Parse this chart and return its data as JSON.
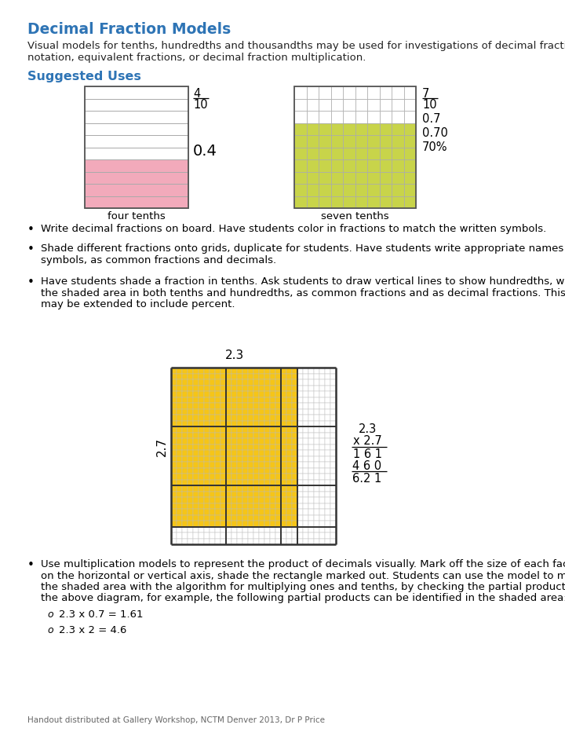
{
  "title": "Decimal Fraction Models",
  "title_color": "#2E74B5",
  "subtitle_line1": "Visual models for tenths, hundredths and thousandths may be used for investigations of decimal fraction",
  "subtitle_line2": "notation, equivalent fractions, or decimal fraction multiplication.",
  "section_title": "Suggested Uses",
  "section_color": "#2E74B5",
  "background_color": "#ffffff",
  "pink_color": "#F2AABB",
  "green_color": "#C8D44A",
  "yellow_color": "#F5C518",
  "grid_color": "#999999",
  "dark_line_color": "#444444",
  "bullet1": "Write decimal fractions on board. Have students color in fractions to match the written symbols.",
  "bullet2_line1": "Shade different fractions onto grids, duplicate for students. Have students write appropriate names and",
  "bullet2_line2": "symbols, as common fractions and decimals.",
  "bullet3_line1": "Have students shade a fraction in tenths. Ask students to draw vertical lines to show hundredths, write",
  "bullet3_line2": "the shaded area in both tenths and hundredths, as common fractions and as decimal fractions. This",
  "bullet3_line3": "may be extended to include percent.",
  "bullet4_line1": "Use multiplication models to represent the product of decimals visually. Mark off the size of each factor",
  "bullet4_line2": "on the horizontal or vertical axis, shade the rectangle marked out. Students can use the model to match",
  "bullet4_line3": "the shaded area with the algorithm for multiplying ones and tenths, by checking the partial products. In",
  "bullet4_line4": "the above diagram, for example, the following partial products can be identified in the shaded area:",
  "sub1": "2.3 x 0.7 = 1.61",
  "sub2": "2.3 x 2 = 4.6",
  "footer": "Handout distributed at Gallery Workshop, NCTM Denver 2013, Dr P Price"
}
